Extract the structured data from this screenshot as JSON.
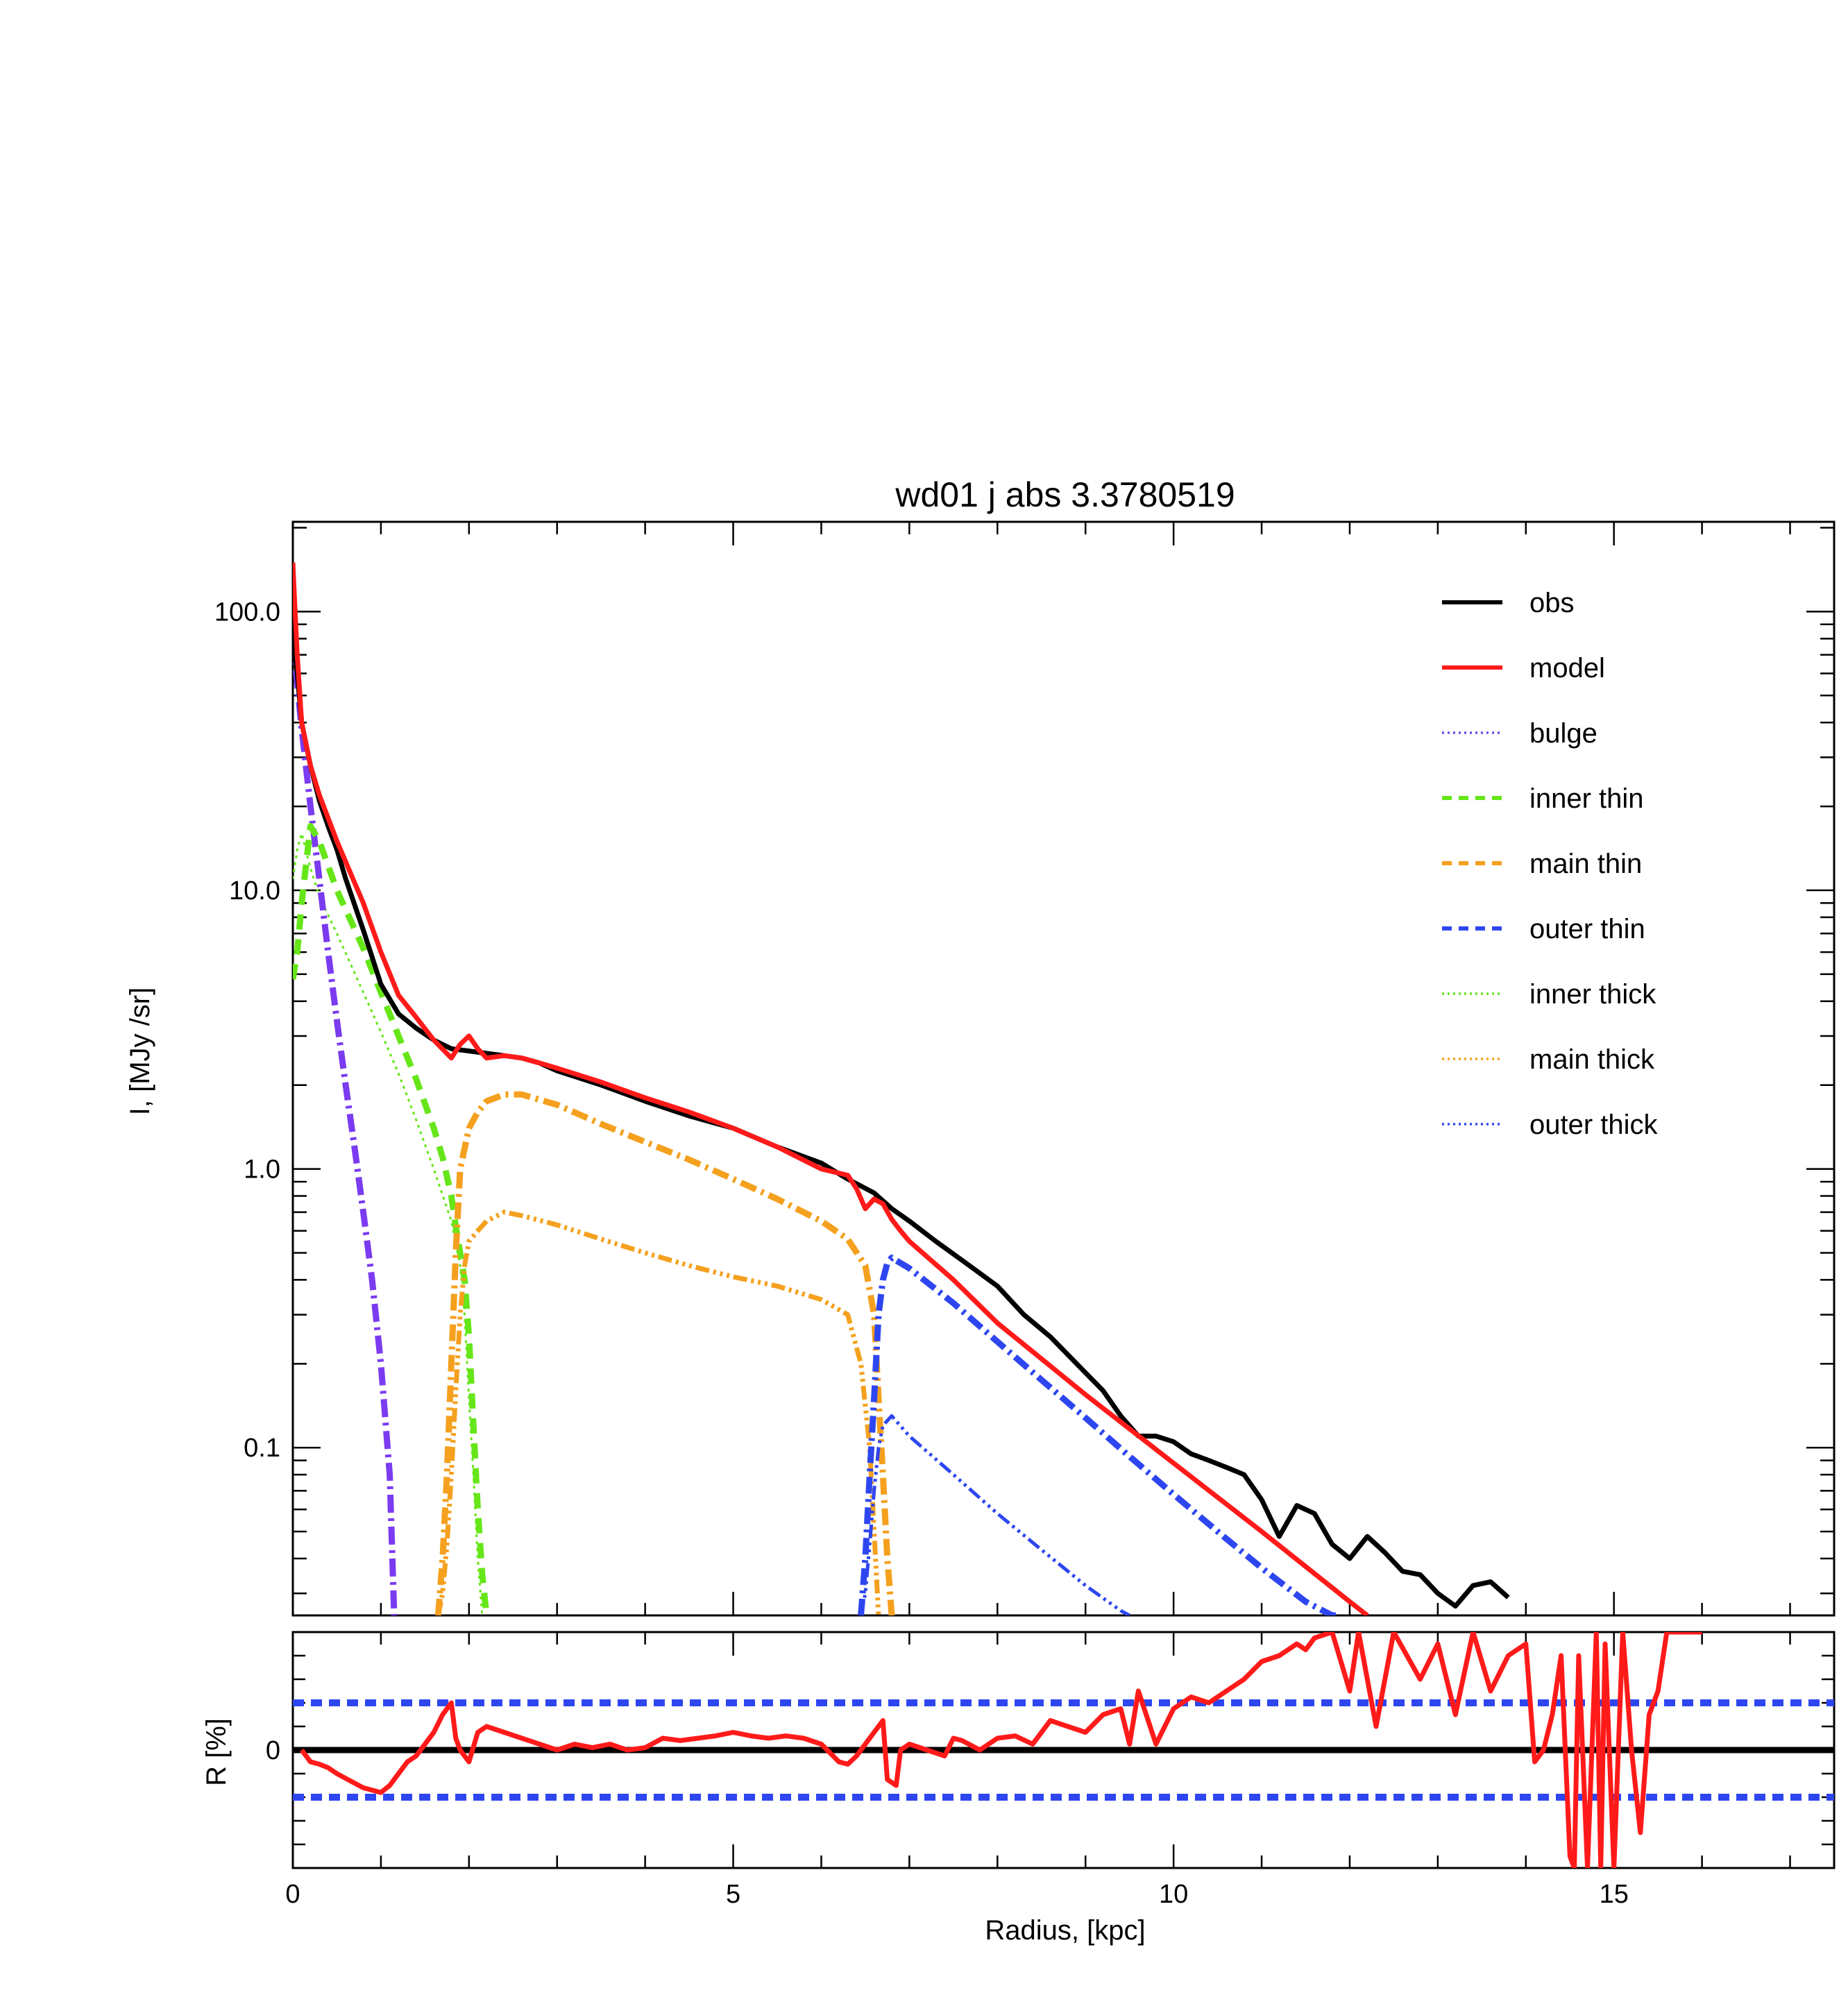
{
  "chart_data": [
    {
      "type": "line",
      "title": "wd01 j abs 3.3780519",
      "ylabel": "I, [MJy /sr]",
      "xlim": [
        0,
        17.5
      ],
      "ylim": [
        0.025,
        210
      ],
      "yscale": "log",
      "ytick_labels": [
        "0.1",
        "1.0",
        "10.0",
        "100.0"
      ],
      "ytick_values": [
        0.1,
        1,
        10,
        100
      ],
      "legend_position": "top-right",
      "colors": {
        "obs": "#000000",
        "model": "#ff1a1a",
        "bulge": "#7b3bf0",
        "inner": "#66e619",
        "main": "#f5a01e",
        "outer": "#2e46f0"
      },
      "legend": [
        {
          "label": "obs",
          "color": "#000000",
          "style": "solid"
        },
        {
          "label": "model",
          "color": "#ff1a1a",
          "style": "solid"
        },
        {
          "label": "bulge",
          "color": "#6a4ef0",
          "style": "dotted"
        },
        {
          "label": "inner thin",
          "color": "#66e619",
          "style": "dashed"
        },
        {
          "label": "main thin",
          "color": "#f5a01e",
          "style": "dashed"
        },
        {
          "label": "outer thin",
          "color": "#2e46f0",
          "style": "dashed"
        },
        {
          "label": "inner thick",
          "color": "#66e619",
          "style": "dotted"
        },
        {
          "label": "main thick",
          "color": "#f5a01e",
          "style": "dotted"
        },
        {
          "label": "outer thick",
          "color": "#2e46f0",
          "style": "dotted"
        }
      ],
      "series": [
        {
          "name": "obs",
          "x": [
            0.0,
            0.05,
            0.1,
            0.2,
            0.3,
            0.4,
            0.5,
            0.6,
            0.8,
            1.0,
            1.2,
            1.4,
            1.6,
            1.8,
            2.0,
            2.2,
            2.4,
            2.6,
            2.8,
            3.0,
            3.5,
            4.0,
            4.5,
            5.0,
            5.5,
            6.0,
            6.3,
            6.6,
            6.8,
            7.0,
            7.3,
            7.6,
            8.0,
            8.3,
            8.6,
            8.9,
            9.2,
            9.4,
            9.6,
            9.8,
            10.0,
            10.2,
            10.4,
            10.6,
            10.8,
            11.0,
            11.2,
            11.4,
            11.6,
            11.8,
            12.0,
            12.2,
            12.4,
            12.6,
            12.8,
            13.0,
            13.2,
            13.4,
            13.6,
            13.8
          ],
          "y": [
            80,
            60,
            40,
            28,
            21,
            17,
            14,
            11,
            7.2,
            4.6,
            3.6,
            3.2,
            2.9,
            2.7,
            2.65,
            2.6,
            2.55,
            2.5,
            2.4,
            2.25,
            2.0,
            1.75,
            1.55,
            1.4,
            1.2,
            1.05,
            0.92,
            0.82,
            0.72,
            0.65,
            0.55,
            0.47,
            0.38,
            0.3,
            0.25,
            0.2,
            0.16,
            0.13,
            0.11,
            0.11,
            0.105,
            0.095,
            0.09,
            0.085,
            0.08,
            0.065,
            0.048,
            0.062,
            0.058,
            0.045,
            0.04,
            0.048,
            0.042,
            0.036,
            0.035,
            0.03,
            0.027,
            0.032,
            0.033,
            0.029
          ]
        },
        {
          "name": "model",
          "x": [
            0.0,
            0.02,
            0.05,
            0.1,
            0.2,
            0.3,
            0.5,
            0.8,
            1.0,
            1.2,
            1.4,
            1.6,
            1.8,
            1.9,
            2.0,
            2.1,
            2.2,
            2.4,
            2.6,
            2.8,
            3.0,
            3.5,
            4.0,
            4.5,
            5.0,
            5.5,
            6.0,
            6.3,
            6.4,
            6.5,
            6.6,
            6.7,
            6.8,
            6.9,
            7.0,
            7.5,
            8.0,
            9.0,
            10.0,
            11.0,
            12.0,
            12.2
          ],
          "y": [
            150,
            110,
            70,
            40,
            28,
            22,
            15,
            9,
            6,
            4.2,
            3.5,
            2.9,
            2.5,
            2.8,
            3.0,
            2.7,
            2.5,
            2.55,
            2.5,
            2.4,
            2.3,
            2.05,
            1.8,
            1.6,
            1.4,
            1.2,
            1.0,
            0.95,
            0.85,
            0.72,
            0.78,
            0.75,
            0.66,
            0.6,
            0.55,
            0.4,
            0.28,
            0.155,
            0.088,
            0.05,
            0.028,
            0.025
          ]
        },
        {
          "name": "bulge",
          "x": [
            0.0,
            0.05,
            0.1,
            0.2,
            0.3,
            0.4,
            0.5,
            0.6,
            0.7,
            0.8,
            0.9,
            1.0,
            1.1,
            1.15
          ],
          "y": [
            80,
            55,
            38,
            20,
            11,
            6,
            3.4,
            2,
            1.2,
            0.7,
            0.4,
            0.2,
            0.08,
            0.025
          ]
        },
        {
          "name": "inner thin",
          "x": [
            0.0,
            0.05,
            0.1,
            0.2,
            0.3,
            0.5,
            0.8,
            1.0,
            1.2,
            1.4,
            1.6,
            1.7,
            1.8,
            1.85,
            1.9,
            1.95,
            2.0,
            2.05,
            2.1,
            2.15,
            2.2
          ],
          "y": [
            4.8,
            6,
            9,
            17,
            15,
            10,
            6.2,
            4.3,
            3.0,
            2.1,
            1.4,
            1.1,
            0.8,
            0.62,
            0.5,
            0.4,
            0.25,
            0.12,
            0.06,
            0.035,
            0.025
          ]
        },
        {
          "name": "inner thick",
          "x": [
            0.0,
            0.05,
            0.1,
            0.2,
            0.3,
            0.5,
            0.8,
            1.0,
            1.2,
            1.4,
            1.6,
            1.8,
            1.9,
            1.95,
            2.0,
            2.05,
            2.1,
            2.15
          ],
          "y": [
            11,
            14,
            16,
            12,
            9.5,
            7,
            4.3,
            3.1,
            2.2,
            1.5,
            1.0,
            0.65,
            0.45,
            0.3,
            0.15,
            0.08,
            0.04,
            0.025
          ]
        },
        {
          "name": "main thin",
          "x": [
            1.65,
            1.7,
            1.75,
            1.8,
            1.85,
            1.9,
            2.0,
            2.1,
            2.2,
            2.4,
            2.6,
            3.0,
            3.5,
            4.0,
            4.5,
            5.0,
            5.5,
            6.0,
            6.3,
            6.5,
            6.6,
            6.65,
            6.7,
            6.75,
            6.8
          ],
          "y": [
            0.025,
            0.04,
            0.08,
            0.2,
            0.5,
            1.0,
            1.4,
            1.6,
            1.75,
            1.85,
            1.85,
            1.7,
            1.45,
            1.25,
            1.08,
            0.92,
            0.78,
            0.65,
            0.56,
            0.45,
            0.3,
            0.15,
            0.08,
            0.04,
            0.025
          ]
        },
        {
          "name": "main thick",
          "x": [
            1.65,
            1.7,
            1.75,
            1.8,
            1.85,
            1.9,
            1.95,
            2.0,
            2.1,
            2.2,
            2.4,
            2.6,
            3.0,
            3.5,
            4.0,
            4.5,
            5.0,
            5.5,
            6.0,
            6.3,
            6.45,
            6.55,
            6.6,
            6.65
          ],
          "y": [
            0.025,
            0.03,
            0.045,
            0.08,
            0.16,
            0.3,
            0.45,
            0.55,
            0.6,
            0.65,
            0.7,
            0.68,
            0.63,
            0.56,
            0.5,
            0.45,
            0.41,
            0.38,
            0.34,
            0.3,
            0.2,
            0.1,
            0.05,
            0.025
          ]
        },
        {
          "name": "outer thin",
          "x": [
            6.45,
            6.5,
            6.55,
            6.6,
            6.65,
            6.7,
            6.75,
            6.8,
            7.0,
            7.5,
            8.0,
            8.5,
            9.0,
            9.5,
            10.0,
            10.5,
            11.0,
            11.5,
            11.8,
            11.9
          ],
          "y": [
            0.025,
            0.04,
            0.08,
            0.15,
            0.3,
            0.4,
            0.46,
            0.48,
            0.44,
            0.33,
            0.24,
            0.175,
            0.128,
            0.093,
            0.068,
            0.05,
            0.037,
            0.028,
            0.025,
            0.025
          ]
        },
        {
          "name": "outer thick",
          "x": [
            6.45,
            6.5,
            6.55,
            6.6,
            6.65,
            6.7,
            6.75,
            6.8,
            7.0,
            7.5,
            8.0,
            8.5,
            9.0,
            9.4,
            9.5
          ],
          "y": [
            0.025,
            0.03,
            0.045,
            0.07,
            0.1,
            0.12,
            0.125,
            0.13,
            0.11,
            0.08,
            0.058,
            0.043,
            0.032,
            0.026,
            0.025
          ]
        }
      ]
    },
    {
      "type": "line",
      "xlabel": "Radius, [kpc]",
      "ylabel": "R [%]",
      "xlim": [
        0,
        17.5
      ],
      "ylim": [
        -1,
        1
      ],
      "xtick_labels": [
        "0",
        "5",
        "10",
        "15"
      ],
      "xtick_values": [
        0,
        5,
        10,
        15
      ],
      "ytick_labels": [
        "0"
      ],
      "ytick_values": [
        0
      ],
      "reference_lines": [
        0.4,
        0,
        -0.4
      ],
      "series": [
        {
          "name": "residual",
          "x": [
            0.1,
            0.2,
            0.3,
            0.4,
            0.5,
            0.6,
            0.8,
            0.9,
            1.0,
            1.1,
            1.2,
            1.3,
            1.4,
            1.5,
            1.6,
            1.7,
            1.8,
            1.85,
            1.9,
            2.0,
            2.1,
            2.2,
            2.4,
            2.6,
            2.8,
            3.0,
            3.2,
            3.4,
            3.6,
            3.8,
            4.0,
            4.2,
            4.4,
            4.6,
            4.8,
            5.0,
            5.2,
            5.4,
            5.6,
            5.8,
            6.0,
            6.2,
            6.3,
            6.4,
            6.5,
            6.6,
            6.7,
            6.75,
            6.85,
            6.9,
            7.0,
            7.2,
            7.4,
            7.5,
            7.6,
            7.8,
            8.0,
            8.2,
            8.4,
            8.6,
            8.8,
            9.0,
            9.2,
            9.4,
            9.5,
            9.6,
            9.8,
            10.0,
            10.2,
            10.4,
            10.6,
            10.8,
            11.0,
            11.2,
            11.4,
            11.5,
            11.6,
            11.8,
            12.0,
            12.1,
            12.3,
            12.5,
            12.8,
            13.0,
            13.2,
            13.4,
            13.6,
            13.8,
            14.0,
            14.1,
            14.2,
            14.3,
            14.4,
            14.5,
            14.55,
            14.6,
            14.7,
            14.8,
            14.85,
            14.9,
            15.0,
            15.1,
            15.2,
            15.3,
            15.4,
            15.5,
            15.6,
            15.7,
            16.0
          ],
          "y": [
            0.0,
            -0.1,
            -0.12,
            -0.15,
            -0.2,
            -0.24,
            -0.32,
            -0.34,
            -0.36,
            -0.3,
            -0.2,
            -0.1,
            -0.05,
            0.05,
            0.15,
            0.3,
            0.4,
            0.1,
            0.0,
            -0.1,
            0.15,
            0.2,
            0.15,
            0.1,
            0.05,
            0.0,
            0.05,
            0.02,
            0.05,
            0.0,
            0.02,
            0.1,
            0.08,
            0.1,
            0.12,
            0.15,
            0.12,
            0.1,
            0.12,
            0.1,
            0.05,
            -0.1,
            -0.12,
            -0.05,
            0.05,
            0.15,
            0.25,
            -0.25,
            -0.3,
            0.0,
            0.05,
            0.0,
            -0.05,
            0.1,
            0.08,
            0.0,
            0.1,
            0.12,
            0.05,
            0.25,
            0.2,
            0.15,
            0.3,
            0.35,
            0.05,
            0.5,
            0.05,
            0.35,
            0.45,
            0.4,
            0.5,
            0.6,
            0.75,
            0.8,
            0.9,
            0.85,
            0.95,
            1.0,
            0.5,
            1.0,
            0.2,
            1.0,
            0.6,
            0.9,
            0.3,
            1.0,
            0.5,
            0.8,
            0.9,
            -0.1,
            0.0,
            0.3,
            0.8,
            -0.9,
            -1.0,
            0.8,
            -1.0,
            1.0,
            -1.0,
            0.9,
            -1.0,
            1.0,
            0.0,
            -0.7,
            0.3,
            0.5,
            1.0,
            1.0,
            1.0
          ]
        }
      ]
    }
  ]
}
